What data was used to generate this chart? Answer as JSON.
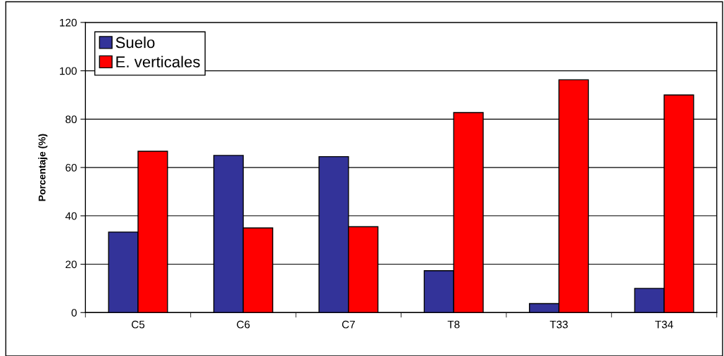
{
  "chart_data": {
    "type": "bar",
    "ylabel": "Porcentaje (%)",
    "categories": [
      "C5",
      "C6",
      "C7",
      "T8",
      "T33",
      "T34"
    ],
    "series": [
      {
        "name": "Suelo",
        "color": "#333399",
        "values": [
          33.3,
          65,
          64.5,
          17.3,
          3.7,
          10
        ]
      },
      {
        "name": "E. verticales",
        "color": "#ff0000",
        "values": [
          66.7,
          35,
          35.5,
          82.7,
          96.3,
          90
        ]
      }
    ],
    "ylim": [
      0,
      120
    ],
    "yticks": [
      0,
      20,
      40,
      60,
      80,
      100,
      120
    ],
    "grid": "y",
    "legend": "top left"
  }
}
